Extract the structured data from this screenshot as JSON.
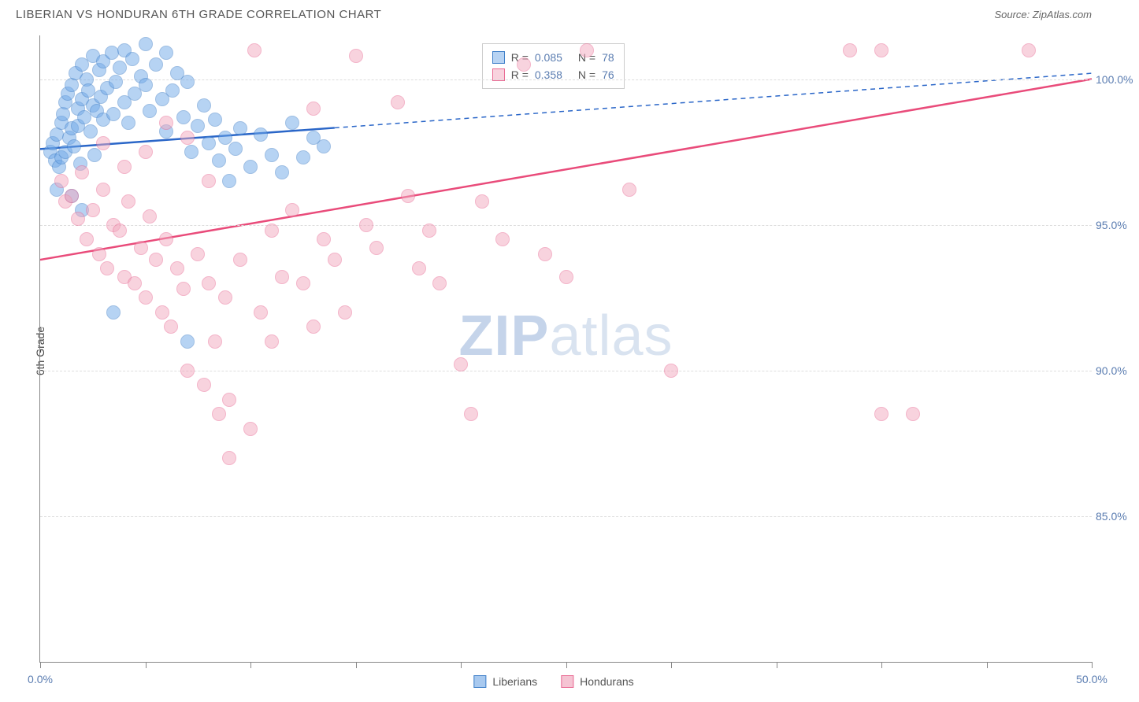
{
  "title": "LIBERIAN VS HONDURAN 6TH GRADE CORRELATION CHART",
  "source": "Source: ZipAtlas.com",
  "ylabel": "6th Grade",
  "watermark_a": "ZIP",
  "watermark_b": "atlas",
  "chart": {
    "type": "scatter",
    "xlim": [
      0,
      50
    ],
    "ylim": [
      80,
      101.5
    ],
    "xticks": [
      0,
      5,
      10,
      15,
      20,
      25,
      30,
      35,
      40,
      45,
      50
    ],
    "xtick_labels": {
      "0": "0.0%",
      "50": "50.0%"
    },
    "yticks": [
      85,
      90,
      95,
      100
    ],
    "ytick_labels": {
      "85": "85.0%",
      "90": "90.0%",
      "95": "95.0%",
      "100": "100.0%"
    },
    "background": "#ffffff",
    "grid_color": "#dddddd",
    "axis_color": "#888888",
    "point_radius": 9,
    "point_opacity": 0.5,
    "series": [
      {
        "name": "Liberians",
        "color_fill": "#6fa8e8",
        "color_stroke": "#3f7fc9",
        "R": "0.085",
        "N": "78",
        "trend": {
          "x1": 0,
          "y1": 97.6,
          "x2_solid": 14,
          "x2": 50,
          "y2": 100.2,
          "color": "#2a66c8",
          "width": 2.5
        },
        "points": [
          [
            0.5,
            97.5
          ],
          [
            0.6,
            97.8
          ],
          [
            0.7,
            97.2
          ],
          [
            0.8,
            98.1
          ],
          [
            0.9,
            97.0
          ],
          [
            1.0,
            98.5
          ],
          [
            1.0,
            97.3
          ],
          [
            1.1,
            98.8
          ],
          [
            1.2,
            99.2
          ],
          [
            1.2,
            97.5
          ],
          [
            1.3,
            99.5
          ],
          [
            1.4,
            98.0
          ],
          [
            1.5,
            99.8
          ],
          [
            1.5,
            98.3
          ],
          [
            1.6,
            97.7
          ],
          [
            1.7,
            100.2
          ],
          [
            1.8,
            99.0
          ],
          [
            1.8,
            98.4
          ],
          [
            1.9,
            97.1
          ],
          [
            2.0,
            100.5
          ],
          [
            2.0,
            99.3
          ],
          [
            2.1,
            98.7
          ],
          [
            2.2,
            100.0
          ],
          [
            2.3,
            99.6
          ],
          [
            2.4,
            98.2
          ],
          [
            2.5,
            100.8
          ],
          [
            2.5,
            99.1
          ],
          [
            2.6,
            97.4
          ],
          [
            2.7,
            98.9
          ],
          [
            2.8,
            100.3
          ],
          [
            2.9,
            99.4
          ],
          [
            3.0,
            98.6
          ],
          [
            3.0,
            100.6
          ],
          [
            3.2,
            99.7
          ],
          [
            3.4,
            100.9
          ],
          [
            3.5,
            98.8
          ],
          [
            3.6,
            99.9
          ],
          [
            3.8,
            100.4
          ],
          [
            4.0,
            99.2
          ],
          [
            4.0,
            101.0
          ],
          [
            4.2,
            98.5
          ],
          [
            4.4,
            100.7
          ],
          [
            4.5,
            99.5
          ],
          [
            4.8,
            100.1
          ],
          [
            5.0,
            99.8
          ],
          [
            5.0,
            101.2
          ],
          [
            5.2,
            98.9
          ],
          [
            5.5,
            100.5
          ],
          [
            5.8,
            99.3
          ],
          [
            6.0,
            100.9
          ],
          [
            6.0,
            98.2
          ],
          [
            6.3,
            99.6
          ],
          [
            6.5,
            100.2
          ],
          [
            6.8,
            98.7
          ],
          [
            7.0,
            99.9
          ],
          [
            7.2,
            97.5
          ],
          [
            7.5,
            98.4
          ],
          [
            7.8,
            99.1
          ],
          [
            8.0,
            97.8
          ],
          [
            8.3,
            98.6
          ],
          [
            8.5,
            97.2
          ],
          [
            8.8,
            98.0
          ],
          [
            9.0,
            96.5
          ],
          [
            9.3,
            97.6
          ],
          [
            9.5,
            98.3
          ],
          [
            10.0,
            97.0
          ],
          [
            10.5,
            98.1
          ],
          [
            11.0,
            97.4
          ],
          [
            11.5,
            96.8
          ],
          [
            12.0,
            98.5
          ],
          [
            12.5,
            97.3
          ],
          [
            13.0,
            98.0
          ],
          [
            13.5,
            97.7
          ],
          [
            3.5,
            92.0
          ],
          [
            7.0,
            91.0
          ],
          [
            2.0,
            95.5
          ],
          [
            1.5,
            96.0
          ],
          [
            0.8,
            96.2
          ]
        ]
      },
      {
        "name": "Hondurans",
        "color_fill": "#f2a8be",
        "color_stroke": "#e96b94",
        "R": "0.358",
        "N": "76",
        "trend": {
          "x1": 0,
          "y1": 93.8,
          "x2_solid": 50,
          "x2": 50,
          "y2": 100.0,
          "color": "#e94b7a",
          "width": 2.5
        },
        "points": [
          [
            1.0,
            96.5
          ],
          [
            1.2,
            95.8
          ],
          [
            1.5,
            96.0
          ],
          [
            1.8,
            95.2
          ],
          [
            2.0,
            96.8
          ],
          [
            2.2,
            94.5
          ],
          [
            2.5,
            95.5
          ],
          [
            2.8,
            94.0
          ],
          [
            3.0,
            96.2
          ],
          [
            3.2,
            93.5
          ],
          [
            3.5,
            95.0
          ],
          [
            3.8,
            94.8
          ],
          [
            4.0,
            93.2
          ],
          [
            4.2,
            95.8
          ],
          [
            4.5,
            93.0
          ],
          [
            4.8,
            94.2
          ],
          [
            5.0,
            92.5
          ],
          [
            5.2,
            95.3
          ],
          [
            5.5,
            93.8
          ],
          [
            5.8,
            92.0
          ],
          [
            6.0,
            94.5
          ],
          [
            6.2,
            91.5
          ],
          [
            6.5,
            93.5
          ],
          [
            6.8,
            92.8
          ],
          [
            7.0,
            90.0
          ],
          [
            7.5,
            94.0
          ],
          [
            7.8,
            89.5
          ],
          [
            8.0,
            93.0
          ],
          [
            8.3,
            91.0
          ],
          [
            8.5,
            88.5
          ],
          [
            8.8,
            92.5
          ],
          [
            9.0,
            89.0
          ],
          [
            9.5,
            93.8
          ],
          [
            10.0,
            88.0
          ],
          [
            10.2,
            101.0
          ],
          [
            10.5,
            92.0
          ],
          [
            11.0,
            94.8
          ],
          [
            11.5,
            93.2
          ],
          [
            12.0,
            95.5
          ],
          [
            12.5,
            93.0
          ],
          [
            13.0,
            99.0
          ],
          [
            13.5,
            94.5
          ],
          [
            14.0,
            93.8
          ],
          [
            14.5,
            92.0
          ],
          [
            15.0,
            100.8
          ],
          [
            15.5,
            95.0
          ],
          [
            16.0,
            94.2
          ],
          [
            17.0,
            99.2
          ],
          [
            17.5,
            96.0
          ],
          [
            18.0,
            93.5
          ],
          [
            18.5,
            94.8
          ],
          [
            19.0,
            93.0
          ],
          [
            20.0,
            90.2
          ],
          [
            20.5,
            88.5
          ],
          [
            21.0,
            95.8
          ],
          [
            22.0,
            94.5
          ],
          [
            23.0,
            100.5
          ],
          [
            24.0,
            94.0
          ],
          [
            25.0,
            93.2
          ],
          [
            26.0,
            101.0
          ],
          [
            28.0,
            96.2
          ],
          [
            30.0,
            90.0
          ],
          [
            38.5,
            101.0
          ],
          [
            40.0,
            101.0
          ],
          [
            40.0,
            88.5
          ],
          [
            41.5,
            88.5
          ],
          [
            47.0,
            101.0
          ],
          [
            7.0,
            98.0
          ],
          [
            6.0,
            98.5
          ],
          [
            5.0,
            97.5
          ],
          [
            9.0,
            87.0
          ],
          [
            8.0,
            96.5
          ],
          [
            4.0,
            97.0
          ],
          [
            3.0,
            97.8
          ],
          [
            11.0,
            91.0
          ],
          [
            13.0,
            91.5
          ]
        ]
      }
    ],
    "legend_bottom": [
      {
        "label": "Liberians",
        "fill": "#a8c9ef",
        "stroke": "#3f7fc9"
      },
      {
        "label": "Hondurans",
        "fill": "#f5c4d3",
        "stroke": "#e96b94"
      }
    ]
  }
}
